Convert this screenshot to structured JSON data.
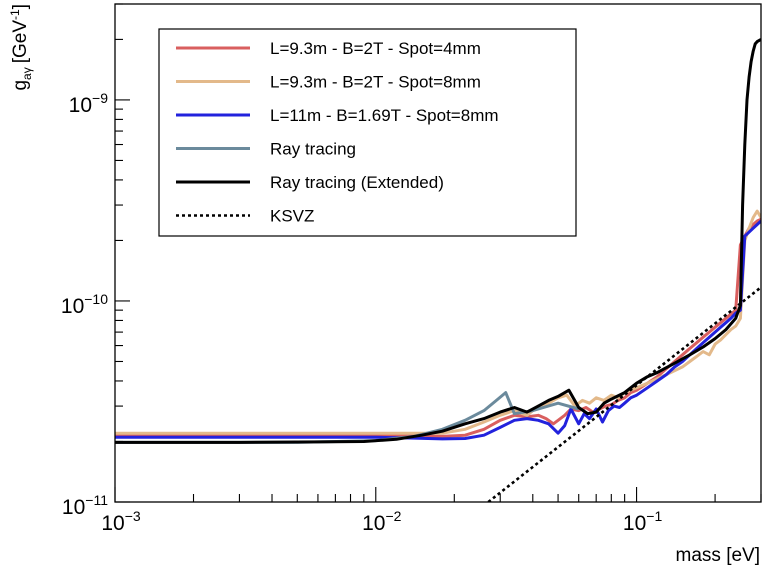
{
  "chart_data": {
    "type": "line",
    "title": "",
    "xlabel": "mass [eV]",
    "ylabel": {
      "base": "g",
      "sub": "aγ",
      "unit": "[GeV",
      "unit_sup": "-1",
      "unit_close": "]"
    },
    "xscale": "log",
    "yscale": "log",
    "xlim": [
      0.001,
      0.3
    ],
    "ylim": [
      1e-11,
      3e-09
    ],
    "grid": false,
    "legend_position": "top-left",
    "x_ticks": [
      {
        "value": 0.001,
        "base": "10",
        "exp": "−3"
      },
      {
        "value": 0.01,
        "base": "10",
        "exp": "−2"
      },
      {
        "value": 0.1,
        "base": "10",
        "exp": "−1"
      }
    ],
    "y_ticks": [
      {
        "value": 1e-11,
        "base": "10",
        "exp": "−11"
      },
      {
        "value": 1e-10,
        "base": "10",
        "exp": "−10"
      },
      {
        "value": 1e-09,
        "base": "10",
        "exp": "−9"
      }
    ],
    "series": [
      {
        "name": "L=9.3m - B=2T - Spot=4mm",
        "color": "#d95f5f",
        "dash": "",
        "x": [
          0.001,
          0.003,
          0.006,
          0.01,
          0.014,
          0.018,
          0.022,
          0.026,
          0.03,
          0.034,
          0.038,
          0.042,
          0.045,
          0.048,
          0.05,
          0.053,
          0.056,
          0.06,
          0.064,
          0.068,
          0.072,
          0.076,
          0.08,
          0.085,
          0.09,
          0.095,
          0.1,
          0.11,
          0.12,
          0.13,
          0.14,
          0.15,
          0.16,
          0.17,
          0.18,
          0.19,
          0.2,
          0.21,
          0.22,
          0.23,
          0.24,
          0.25,
          0.26,
          0.27,
          0.28,
          0.29,
          0.3
        ],
        "y": [
          2.15e-11,
          2.15e-11,
          2.15e-11,
          2.15e-11,
          2.13e-11,
          2.12e-11,
          2.15e-11,
          2.3e-11,
          2.55e-11,
          2.7e-11,
          2.65e-11,
          2.7e-11,
          2.6e-11,
          2.45e-11,
          2.55e-11,
          2.7e-11,
          2.9e-11,
          2.85e-11,
          2.95e-11,
          2.8e-11,
          2.9e-11,
          3e-11,
          3.05e-11,
          3.2e-11,
          3.3e-11,
          3.5e-11,
          3.6e-11,
          3.9e-11,
          4.2e-11,
          4.6e-11,
          5e-11,
          5.4e-11,
          5.8e-11,
          6.2e-11,
          6.6e-11,
          7e-11,
          7.4e-11,
          7.8e-11,
          8.2e-11,
          8.6e-11,
          9e-11,
          1.9e-10,
          2.1e-10,
          2.3e-10,
          2.4e-10,
          2.5e-10,
          2.55e-10
        ]
      },
      {
        "name": "L=9.3m - B=2T - Spot=8mm",
        "color": "#e3b98a",
        "dash": "",
        "x": [
          0.001,
          0.003,
          0.006,
          0.01,
          0.014,
          0.018,
          0.022,
          0.026,
          0.03,
          0.034,
          0.038,
          0.042,
          0.046,
          0.05,
          0.054,
          0.058,
          0.062,
          0.066,
          0.07,
          0.075,
          0.08,
          0.085,
          0.09,
          0.1,
          0.11,
          0.12,
          0.13,
          0.14,
          0.15,
          0.16,
          0.17,
          0.18,
          0.19,
          0.2,
          0.21,
          0.22,
          0.23,
          0.24,
          0.25,
          0.26,
          0.27,
          0.28,
          0.29,
          0.3
        ],
        "y": [
          2.2e-11,
          2.2e-11,
          2.2e-11,
          2.2e-11,
          2.2e-11,
          2.2e-11,
          2.3e-11,
          2.5e-11,
          2.7e-11,
          2.85e-11,
          2.7e-11,
          3e-11,
          3.1e-11,
          3.3e-11,
          3.4e-11,
          3e-11,
          3.2e-11,
          3.1e-11,
          3.3e-11,
          3.2e-11,
          3.4e-11,
          3.3e-11,
          3.5e-11,
          3.7e-11,
          3.9e-11,
          4.1e-11,
          4.3e-11,
          4.5e-11,
          4.7e-11,
          5e-11,
          5.3e-11,
          5.6e-11,
          5.4e-11,
          6.1e-11,
          6.4e-11,
          6.8e-11,
          7.2e-11,
          7.5e-11,
          8.2e-11,
          2e-10,
          2.3e-10,
          2.6e-10,
          2.8e-10,
          2.6e-10
        ]
      },
      {
        "name": "L=11m - B=1.69T - Spot=8mm",
        "color": "#2222dd",
        "dash": "",
        "x": [
          0.001,
          0.003,
          0.006,
          0.01,
          0.014,
          0.018,
          0.022,
          0.026,
          0.03,
          0.034,
          0.038,
          0.042,
          0.046,
          0.05,
          0.053,
          0.056,
          0.06,
          0.063,
          0.066,
          0.07,
          0.074,
          0.078,
          0.082,
          0.086,
          0.09,
          0.095,
          0.1,
          0.11,
          0.12,
          0.13,
          0.14,
          0.15,
          0.16,
          0.17,
          0.18,
          0.19,
          0.2,
          0.21,
          0.22,
          0.23,
          0.24,
          0.25,
          0.26,
          0.27,
          0.28,
          0.29,
          0.3
        ],
        "y": [
          2.1e-11,
          2.1e-11,
          2.1e-11,
          2.1e-11,
          2.08e-11,
          2.06e-11,
          2.07e-11,
          2.15e-11,
          2.35e-11,
          2.55e-11,
          2.6e-11,
          2.55e-11,
          2.45e-11,
          2.2e-11,
          2.4e-11,
          2.9e-11,
          2.45e-11,
          2.75e-11,
          2.6e-11,
          2.9e-11,
          2.5e-11,
          2.85e-11,
          3e-11,
          2.95e-11,
          3.1e-11,
          3.3e-11,
          3.4e-11,
          3.7e-11,
          4e-11,
          4.3e-11,
          4.7e-11,
          5e-11,
          5.4e-11,
          5.8e-11,
          6.2e-11,
          6.6e-11,
          7e-11,
          7.4e-11,
          7.8e-11,
          8.2e-11,
          8.7e-11,
          9e-11,
          2.1e-10,
          2.2e-10,
          2.3e-10,
          2.4e-10,
          2.5e-10
        ]
      },
      {
        "name": "Ray tracing",
        "color": "#6b8a9c",
        "dash": "",
        "x": [
          0.001,
          0.005,
          0.01,
          0.014,
          0.018,
          0.022,
          0.026,
          0.029,
          0.0315,
          0.034,
          0.04,
          0.05,
          0.06
        ],
        "y": [
          1.98e-11,
          1.98e-11,
          2.02e-11,
          2.12e-11,
          2.3e-11,
          2.55e-11,
          2.85e-11,
          3.2e-11,
          3.5e-11,
          2.75e-11,
          2.85e-11,
          3.1e-11,
          2.9e-11
        ]
      },
      {
        "name": "Ray tracing (Extended)",
        "color": "#000000",
        "dash": "",
        "x": [
          0.001,
          0.003,
          0.006,
          0.009,
          0.012,
          0.015,
          0.018,
          0.022,
          0.026,
          0.03,
          0.034,
          0.038,
          0.042,
          0.046,
          0.05,
          0.055,
          0.06,
          0.065,
          0.07,
          0.075,
          0.08,
          0.09,
          0.1,
          0.11,
          0.12,
          0.14,
          0.16,
          0.18,
          0.2,
          0.22,
          0.24,
          0.25,
          0.255,
          0.26,
          0.265,
          0.27,
          0.275,
          0.28,
          0.285,
          0.29,
          0.3
        ],
        "y": [
          1.98e-11,
          1.98e-11,
          1.99e-11,
          2e-11,
          2.05e-11,
          2.15e-11,
          2.25e-11,
          2.45e-11,
          2.6e-11,
          2.8e-11,
          2.95e-11,
          2.8e-11,
          3e-11,
          3.2e-11,
          3.35e-11,
          3.6e-11,
          2.95e-11,
          2.75e-11,
          2.8e-11,
          3.1e-11,
          3.25e-11,
          3.5e-11,
          3.9e-11,
          4.2e-11,
          4.4e-11,
          4.9e-11,
          5.4e-11,
          5.9e-11,
          6.5e-11,
          7.2e-11,
          8.2e-11,
          9.5e-11,
          3e-10,
          6e-10,
          1e-09,
          1.3e-09,
          1.55e-09,
          1.75e-09,
          1.9e-09,
          1.95e-09,
          2e-09
        ]
      },
      {
        "name": "KSVZ",
        "color": "#000000",
        "dash": "dotted",
        "x": [
          0.027,
          0.3
        ],
        "y": [
          1e-11,
          1.17e-10
        ]
      }
    ]
  }
}
